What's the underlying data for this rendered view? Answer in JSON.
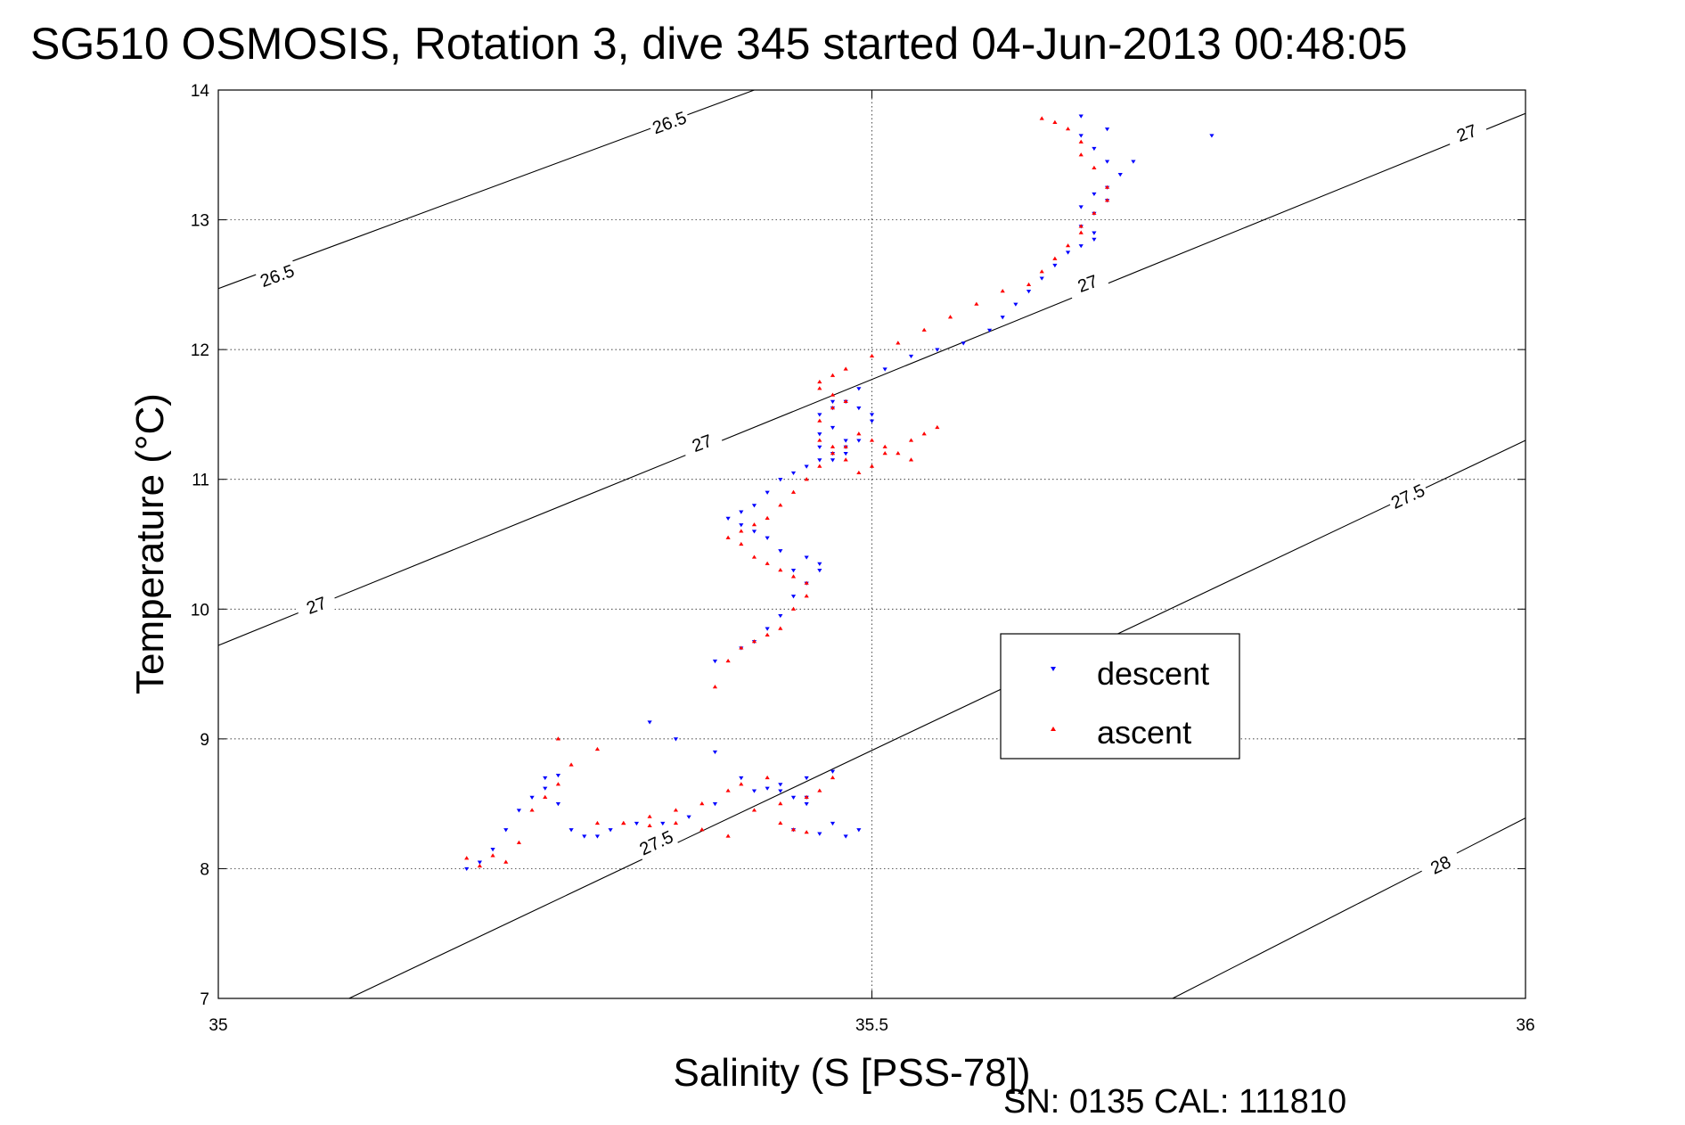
{
  "chart_data": {
    "type": "scatter",
    "title": "SG510 OSMOSIS, Rotation 3, dive 345 started 04-Jun-2013 00:48:05",
    "xlabel": "Salinity (S [PSS-78])",
    "ylabel": "Temperature (°C)",
    "xlim": [
      35,
      36
    ],
    "ylim": [
      7,
      14
    ],
    "x_ticks": [
      35,
      35.5,
      36
    ],
    "x_tick_labels": [
      "35",
      "35.5",
      "36"
    ],
    "y_ticks": [
      7,
      8,
      9,
      10,
      11,
      12,
      13,
      14
    ],
    "y_tick_labels": [
      "7",
      "8",
      "9",
      "10",
      "11",
      "12",
      "13",
      "14"
    ],
    "grid": true,
    "legend_position": "center-right",
    "footer": "SN: 0135  CAL: 111810",
    "contours": [
      {
        "level": "26.5",
        "x": [
          35,
          35.41
        ],
        "y": [
          12.47,
          14.0
        ]
      },
      {
        "level": "27",
        "x": [
          35,
          36
        ],
        "y": [
          9.72,
          13.82
        ]
      },
      {
        "level": "27.5",
        "x": [
          35.1,
          36
        ],
        "y": [
          7.0,
          11.3
        ]
      },
      {
        "level": "28",
        "x": [
          35.73,
          36
        ],
        "y": [
          7.0,
          8.39
        ]
      }
    ],
    "contour_labels": [
      {
        "text": "26.5",
        "x": 35.345,
        "y": 13.75,
        "angle": -20
      },
      {
        "text": "26.5",
        "x": 35.045,
        "y": 12.57,
        "angle": -20
      },
      {
        "text": "27",
        "x": 35.955,
        "y": 13.67,
        "angle": -20
      },
      {
        "text": "27",
        "x": 35.665,
        "y": 12.51,
        "angle": -20
      },
      {
        "text": "27",
        "x": 35.37,
        "y": 11.28,
        "angle": -20
      },
      {
        "text": "27",
        "x": 35.075,
        "y": 10.03,
        "angle": -20
      },
      {
        "text": "27.5",
        "x": 35.91,
        "y": 10.87,
        "angle": -25
      },
      {
        "text": "27.5",
        "x": 35.335,
        "y": 8.2,
        "angle": -25
      },
      {
        "text": "28",
        "x": 35.935,
        "y": 8.03,
        "angle": -25
      }
    ],
    "series": [
      {
        "name": "descent",
        "color": "#0000ff",
        "marker": "triangle-down",
        "x": [
          35.19,
          35.2,
          35.21,
          35.22,
          35.23,
          35.24,
          35.25,
          35.25,
          35.26,
          35.26,
          35.27,
          35.28,
          35.29,
          35.3,
          35.32,
          35.34,
          35.36,
          35.38,
          35.41,
          35.43,
          35.45,
          35.47,
          35.49,
          35.48,
          35.46,
          35.44,
          35.43,
          35.45,
          35.47,
          35.45,
          35.44,
          35.42,
          35.4,
          35.38,
          35.35,
          35.33,
          35.38,
          35.4,
          35.41,
          35.42,
          35.43,
          35.44,
          35.45,
          35.46,
          35.46,
          35.45,
          35.44,
          35.43,
          35.42,
          35.41,
          35.4,
          35.39,
          35.4,
          35.41,
          35.42,
          35.43,
          35.44,
          35.45,
          35.46,
          35.47,
          35.48,
          35.49,
          35.5,
          35.5,
          35.49,
          35.48,
          35.47,
          35.46,
          35.47,
          35.48,
          35.48,
          35.47,
          35.46,
          35.46,
          35.47,
          35.49,
          35.51,
          35.53,
          35.55,
          35.57,
          35.59,
          35.6,
          35.61,
          35.62,
          35.63,
          35.64,
          35.65,
          35.66,
          35.67,
          35.67,
          35.66,
          35.67,
          35.68,
          35.68,
          35.69,
          35.68,
          35.67,
          35.66,
          35.66,
          35.68,
          35.7,
          35.67,
          35.66,
          35.76
        ],
        "y": [
          8.0,
          8.05,
          8.15,
          8.3,
          8.45,
          8.55,
          8.62,
          8.7,
          8.72,
          8.5,
          8.3,
          8.25,
          8.25,
          8.3,
          8.35,
          8.35,
          8.4,
          8.5,
          8.6,
          8.65,
          8.55,
          8.35,
          8.3,
          8.25,
          8.27,
          8.3,
          8.6,
          8.7,
          8.75,
          8.5,
          8.55,
          8.62,
          8.7,
          8.9,
          9.0,
          9.13,
          9.6,
          9.7,
          9.75,
          9.85,
          9.95,
          10.1,
          10.2,
          10.3,
          10.35,
          10.4,
          10.3,
          10.45,
          10.55,
          10.6,
          10.65,
          10.7,
          10.75,
          10.8,
          10.9,
          11.0,
          11.05,
          11.1,
          11.15,
          11.2,
          11.25,
          11.3,
          11.45,
          11.5,
          11.55,
          11.6,
          11.55,
          11.5,
          11.4,
          11.3,
          11.2,
          11.15,
          11.25,
          11.35,
          11.6,
          11.7,
          11.85,
          11.95,
          12.0,
          12.05,
          12.15,
          12.25,
          12.35,
          12.45,
          12.55,
          12.65,
          12.75,
          12.8,
          12.85,
          12.9,
          12.95,
          13.05,
          13.15,
          13.25,
          13.35,
          13.45,
          13.55,
          13.65,
          13.8,
          13.7,
          13.45,
          13.2,
          13.1,
          13.65
        ]
      },
      {
        "name": "ascent",
        "color": "#ff0000",
        "marker": "triangle-up",
        "x": [
          35.19,
          35.2,
          35.21,
          35.22,
          35.23,
          35.24,
          35.25,
          35.26,
          35.27,
          35.29,
          35.31,
          35.33,
          35.35,
          35.37,
          35.39,
          35.41,
          35.43,
          35.45,
          35.46,
          35.44,
          35.43,
          35.45,
          35.47,
          35.42,
          35.4,
          35.39,
          35.37,
          35.35,
          35.33,
          35.31,
          35.29,
          35.26,
          35.38,
          35.39,
          35.4,
          35.41,
          35.42,
          35.43,
          35.44,
          35.45,
          35.45,
          35.44,
          35.43,
          35.42,
          35.41,
          35.4,
          35.39,
          35.4,
          35.41,
          35.42,
          35.43,
          35.44,
          35.45,
          35.46,
          35.47,
          35.48,
          35.49,
          35.5,
          35.51,
          35.52,
          35.53,
          35.54,
          35.55,
          35.53,
          35.51,
          35.5,
          35.49,
          35.48,
          35.47,
          35.46,
          35.46,
          35.47,
          35.48,
          35.47,
          35.46,
          35.46,
          35.47,
          35.48,
          35.5,
          35.52,
          35.54,
          35.56,
          35.58,
          35.6,
          35.62,
          35.63,
          35.64,
          35.65,
          35.66,
          35.66,
          35.67,
          35.68,
          35.68,
          35.67,
          35.66,
          35.66,
          35.65,
          35.64,
          35.63
        ],
        "y": [
          8.08,
          8.02,
          8.1,
          8.05,
          8.2,
          8.45,
          8.55,
          8.65,
          8.8,
          8.35,
          8.35,
          8.33,
          8.35,
          8.3,
          8.25,
          8.45,
          8.5,
          8.55,
          8.6,
          8.3,
          8.35,
          8.28,
          8.7,
          8.7,
          8.65,
          8.6,
          8.5,
          8.45,
          8.4,
          8.35,
          8.92,
          9.0,
          9.4,
          9.6,
          9.7,
          9.75,
          9.8,
          9.85,
          10.0,
          10.1,
          10.2,
          10.25,
          10.3,
          10.35,
          10.4,
          10.5,
          10.55,
          10.6,
          10.65,
          10.7,
          10.8,
          10.9,
          11.0,
          11.1,
          11.2,
          11.25,
          11.35,
          11.3,
          11.25,
          11.2,
          11.15,
          11.35,
          11.4,
          11.3,
          11.2,
          11.1,
          11.05,
          11.15,
          11.25,
          11.3,
          11.45,
          11.55,
          11.6,
          11.65,
          11.7,
          11.75,
          11.8,
          11.85,
          11.95,
          12.05,
          12.15,
          12.25,
          12.35,
          12.45,
          12.5,
          12.6,
          12.7,
          12.8,
          12.9,
          12.95,
          13.05,
          13.15,
          13.25,
          13.4,
          13.5,
          13.6,
          13.7,
          13.75,
          13.78
        ]
      }
    ]
  }
}
